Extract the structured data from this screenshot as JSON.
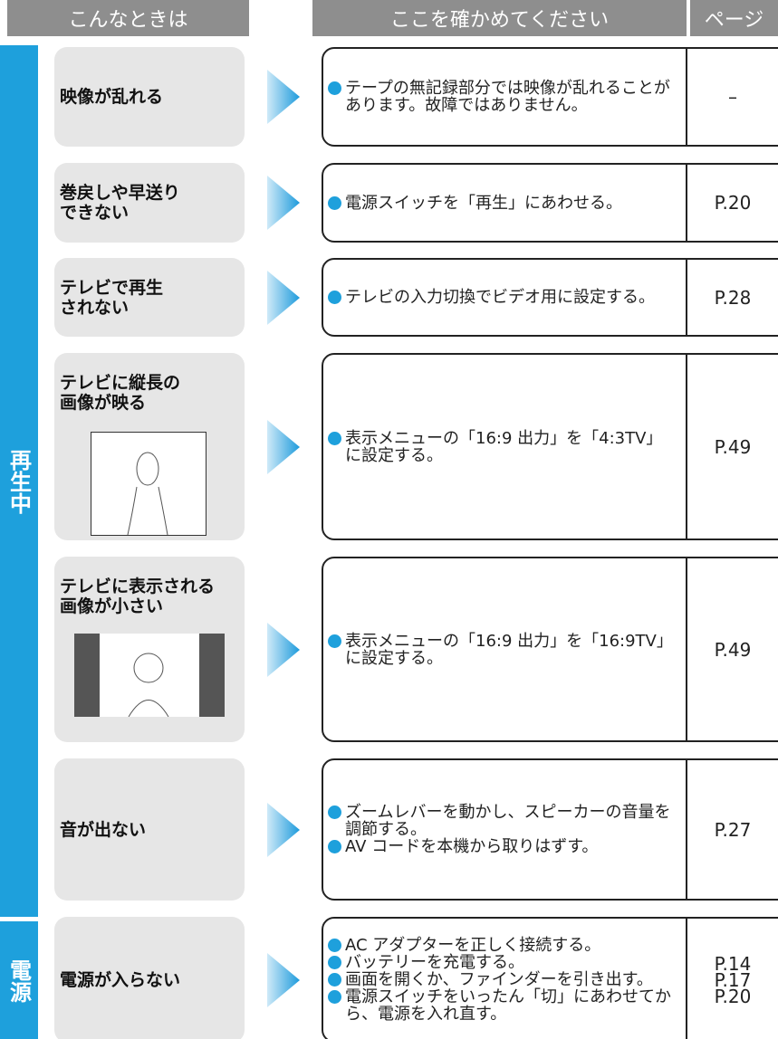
{
  "header": {
    "columns": [
      "こんなときは",
      "ここを確かめてください",
      "ページ"
    ]
  },
  "sections": [
    {
      "label": "再生中",
      "rows": [
        {
          "symptom": [
            "映像が乱れる"
          ],
          "checks": [
            "テープの無記録部分では映像が乱れることがあります。故障ではありません。"
          ],
          "pages": [
            "–"
          ]
        },
        {
          "symptom": [
            "巻戻しや早送り",
            "できない"
          ],
          "checks": [
            "電源スイッチを「再生」にあわせる。"
          ],
          "pages": [
            "P.20"
          ]
        },
        {
          "symptom": [
            "テレビで再生",
            "されない"
          ],
          "checks": [
            "テレビの入力切換でビデオ用に設定する。"
          ],
          "pages": [
            "P.28"
          ]
        },
        {
          "symptom": [
            "テレビに縦長の",
            "画像が映る"
          ],
          "checks": [
            "表示メニューの「16:9 出力」を「4:3TV」に設定する。"
          ],
          "pages": [
            "P.49"
          ]
        },
        {
          "symptom": [
            "テレビに表示される",
            "画像が小さい"
          ],
          "checks": [
            "表示メニューの「16:9 出力」を「16:9TV」に設定する。"
          ],
          "pages": [
            "P.49"
          ]
        },
        {
          "symptom": [
            "音が出ない"
          ],
          "checks": [
            "ズームレバーを動かし、スピーカーの音量を調節する。",
            "AV コードを本機から取りはずす。"
          ],
          "pages": [
            "P.27"
          ]
        }
      ]
    },
    {
      "label": "電源",
      "rows": [
        {
          "symptom": [
            "電源が入らない"
          ],
          "checks": [
            "AC アダプターを正しく接続する。",
            "バッテリーを充電する。",
            "画面を開くか、ファインダーを引き出す。",
            "電源スイッチをいったん「切」にあわせてから、電源を入れ直す。"
          ],
          "pages": [
            "P.14",
            "P.17",
            "P.20"
          ]
        }
      ]
    }
  ]
}
